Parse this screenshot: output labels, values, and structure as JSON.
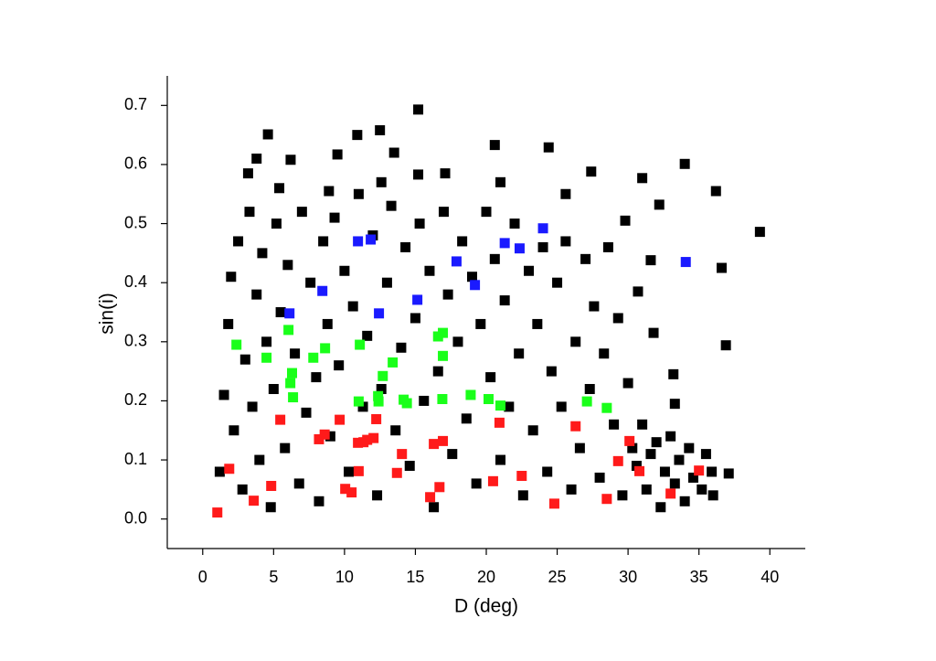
{
  "chart_data": {
    "type": "scatter",
    "x_label": "D (deg)",
    "y_label": "sin(i)",
    "xlim": [
      -2.5,
      42.5
    ],
    "ylim": [
      -0.05,
      0.75
    ],
    "xticks": [
      0,
      5,
      10,
      15,
      20,
      25,
      30,
      35,
      40
    ],
    "yticks": [
      {
        "value": 0,
        "label": "0.0"
      },
      {
        "value": 0.1,
        "label": "0.1"
      },
      {
        "value": 0.2,
        "label": "0.2"
      },
      {
        "value": 0.3,
        "label": "0.3"
      },
      {
        "value": 0.4,
        "label": "0.4"
      },
      {
        "value": 0.5,
        "label": "0.5"
      },
      {
        "value": 0.6,
        "label": "0.6"
      },
      {
        "value": 0.7,
        "label": "0.7"
      }
    ],
    "grid": false,
    "series": [
      {
        "color": "#000000",
        "x": [
          1.2,
          1.5,
          1.8,
          2.0,
          2.2,
          2.5,
          2.8,
          3.0,
          3.3,
          3.5,
          3.8,
          4.0,
          4.2,
          4.5,
          4.8,
          5.0,
          5.2,
          5.5,
          5.8,
          6.0,
          6.5,
          6.8,
          7.0,
          7.3,
          7.6,
          8.0,
          8.2,
          8.5,
          8.8,
          9.0,
          9.3,
          9.6,
          10.0,
          10.3,
          10.6,
          11.0,
          11.3,
          11.6,
          12.0,
          12.3,
          12.6,
          13.0,
          13.3,
          13.6,
          14.0,
          14.3,
          14.6,
          15.0,
          15.3,
          15.6,
          16.0,
          16.3,
          16.6,
          17.0,
          17.3,
          17.6,
          18.0,
          18.3,
          18.6,
          19.0,
          19.3,
          19.6,
          20.0,
          20.3,
          20.6,
          21.0,
          21.3,
          21.6,
          22.0,
          22.3,
          22.6,
          23.0,
          23.3,
          23.6,
          24.0,
          24.3,
          24.6,
          25.0,
          25.3,
          25.6,
          26.0,
          26.3,
          26.6,
          27.0,
          27.3,
          27.6,
          28.0,
          28.3,
          28.6,
          29.0,
          29.3,
          29.6,
          30.0,
          30.3,
          30.6,
          31.0,
          31.3,
          31.6,
          32.0,
          32.3,
          32.6,
          33.0,
          33.3,
          33.6,
          34.0,
          34.3,
          34.6,
          35.2,
          35.5,
          36.0,
          15.2,
          12.5,
          4.6,
          10.9,
          20.6,
          24.4,
          9.5,
          13.5,
          3.8,
          6.2,
          34.0,
          15.2,
          27.4,
          31.0,
          36.2,
          32.2,
          39.3,
          29.8,
          36.6,
          31.6,
          30.7,
          36.9,
          31.8,
          33.2,
          33.3,
          37.1,
          35.9,
          3.2,
          5.4,
          8.9,
          12.6,
          21.0,
          17.1,
          25.6
        ],
        "values": [
          0.08,
          0.21,
          0.33,
          0.41,
          0.15,
          0.47,
          0.05,
          0.27,
          0.52,
          0.19,
          0.38,
          0.1,
          0.45,
          0.3,
          0.02,
          0.22,
          0.5,
          0.35,
          0.12,
          0.43,
          0.28,
          0.06,
          0.52,
          0.18,
          0.4,
          0.24,
          0.03,
          0.47,
          0.33,
          0.14,
          0.51,
          0.26,
          0.42,
          0.08,
          0.36,
          0.55,
          0.19,
          0.31,
          0.48,
          0.04,
          0.22,
          0.4,
          0.53,
          0.15,
          0.29,
          0.46,
          0.09,
          0.34,
          0.5,
          0.2,
          0.42,
          0.02,
          0.25,
          0.52,
          0.38,
          0.11,
          0.3,
          0.47,
          0.17,
          0.41,
          0.06,
          0.33,
          0.52,
          0.24,
          0.44,
          0.1,
          0.37,
          0.19,
          0.5,
          0.28,
          0.04,
          0.42,
          0.15,
          0.33,
          0.46,
          0.08,
          0.25,
          0.4,
          0.19,
          0.47,
          0.05,
          0.3,
          0.12,
          0.44,
          0.22,
          0.36,
          0.07,
          0.28,
          0.46,
          0.16,
          0.34,
          0.04,
          0.23,
          0.12,
          0.09,
          0.16,
          0.05,
          0.11,
          0.13,
          0.02,
          0.08,
          0.14,
          0.06,
          0.1,
          0.03,
          0.12,
          0.07,
          0.05,
          0.11,
          0.04,
          0.693,
          0.658,
          0.651,
          0.65,
          0.633,
          0.629,
          0.617,
          0.62,
          0.61,
          0.608,
          0.601,
          0.583,
          0.588,
          0.577,
          0.555,
          0.532,
          0.486,
          0.505,
          0.425,
          0.438,
          0.385,
          0.294,
          0.315,
          0.245,
          0.195,
          0.077,
          0.08,
          0.585,
          0.56,
          0.555,
          0.57,
          0.57,
          0.585,
          0.55
        ]
      },
      {
        "color": "#ff1a1a",
        "x": [
          1.03,
          1.87,
          3.6,
          4.83,
          5.47,
          8.2,
          8.6,
          9.66,
          10.05,
          10.5,
          10.95,
          11.0,
          11.34,
          11.6,
          12.05,
          12.24,
          13.7,
          14.05,
          16.04,
          16.3,
          16.7,
          16.94,
          20.48,
          20.93,
          22.5,
          24.8,
          26.3,
          28.5,
          29.3,
          30.1,
          30.8,
          33.0,
          35.0
        ],
        "values": [
          0.011,
          0.085,
          0.031,
          0.056,
          0.168,
          0.135,
          0.143,
          0.168,
          0.051,
          0.045,
          0.129,
          0.081,
          0.13,
          0.134,
          0.137,
          0.169,
          0.078,
          0.11,
          0.037,
          0.127,
          0.054,
          0.132,
          0.064,
          0.163,
          0.073,
          0.026,
          0.157,
          0.034,
          0.098,
          0.132,
          0.081,
          0.043,
          0.082
        ]
      },
      {
        "color": "#1aff1a",
        "x": [
          2.38,
          4.5,
          6.05,
          6.18,
          6.3,
          6.37,
          7.8,
          8.63,
          11.08,
          11.0,
          12.37,
          12.4,
          12.7,
          13.4,
          14.17,
          14.4,
          16.6,
          16.94,
          16.94,
          16.9,
          18.9,
          20.16,
          21.0,
          27.1,
          28.5
        ],
        "values": [
          0.295,
          0.273,
          0.32,
          0.23,
          0.247,
          0.206,
          0.273,
          0.289,
          0.295,
          0.199,
          0.208,
          0.199,
          0.242,
          0.265,
          0.202,
          0.196,
          0.309,
          0.315,
          0.276,
          0.203,
          0.21,
          0.203,
          0.192,
          0.199,
          0.188
        ]
      },
      {
        "color": "#1a1aff",
        "x": [
          6.12,
          8.44,
          10.95,
          11.85,
          12.43,
          15.14,
          17.9,
          19.2,
          21.3,
          22.35,
          24.0,
          34.07
        ],
        "values": [
          0.348,
          0.386,
          0.47,
          0.473,
          0.348,
          0.371,
          0.436,
          0.396,
          0.467,
          0.458,
          0.492,
          0.435
        ]
      }
    ]
  }
}
